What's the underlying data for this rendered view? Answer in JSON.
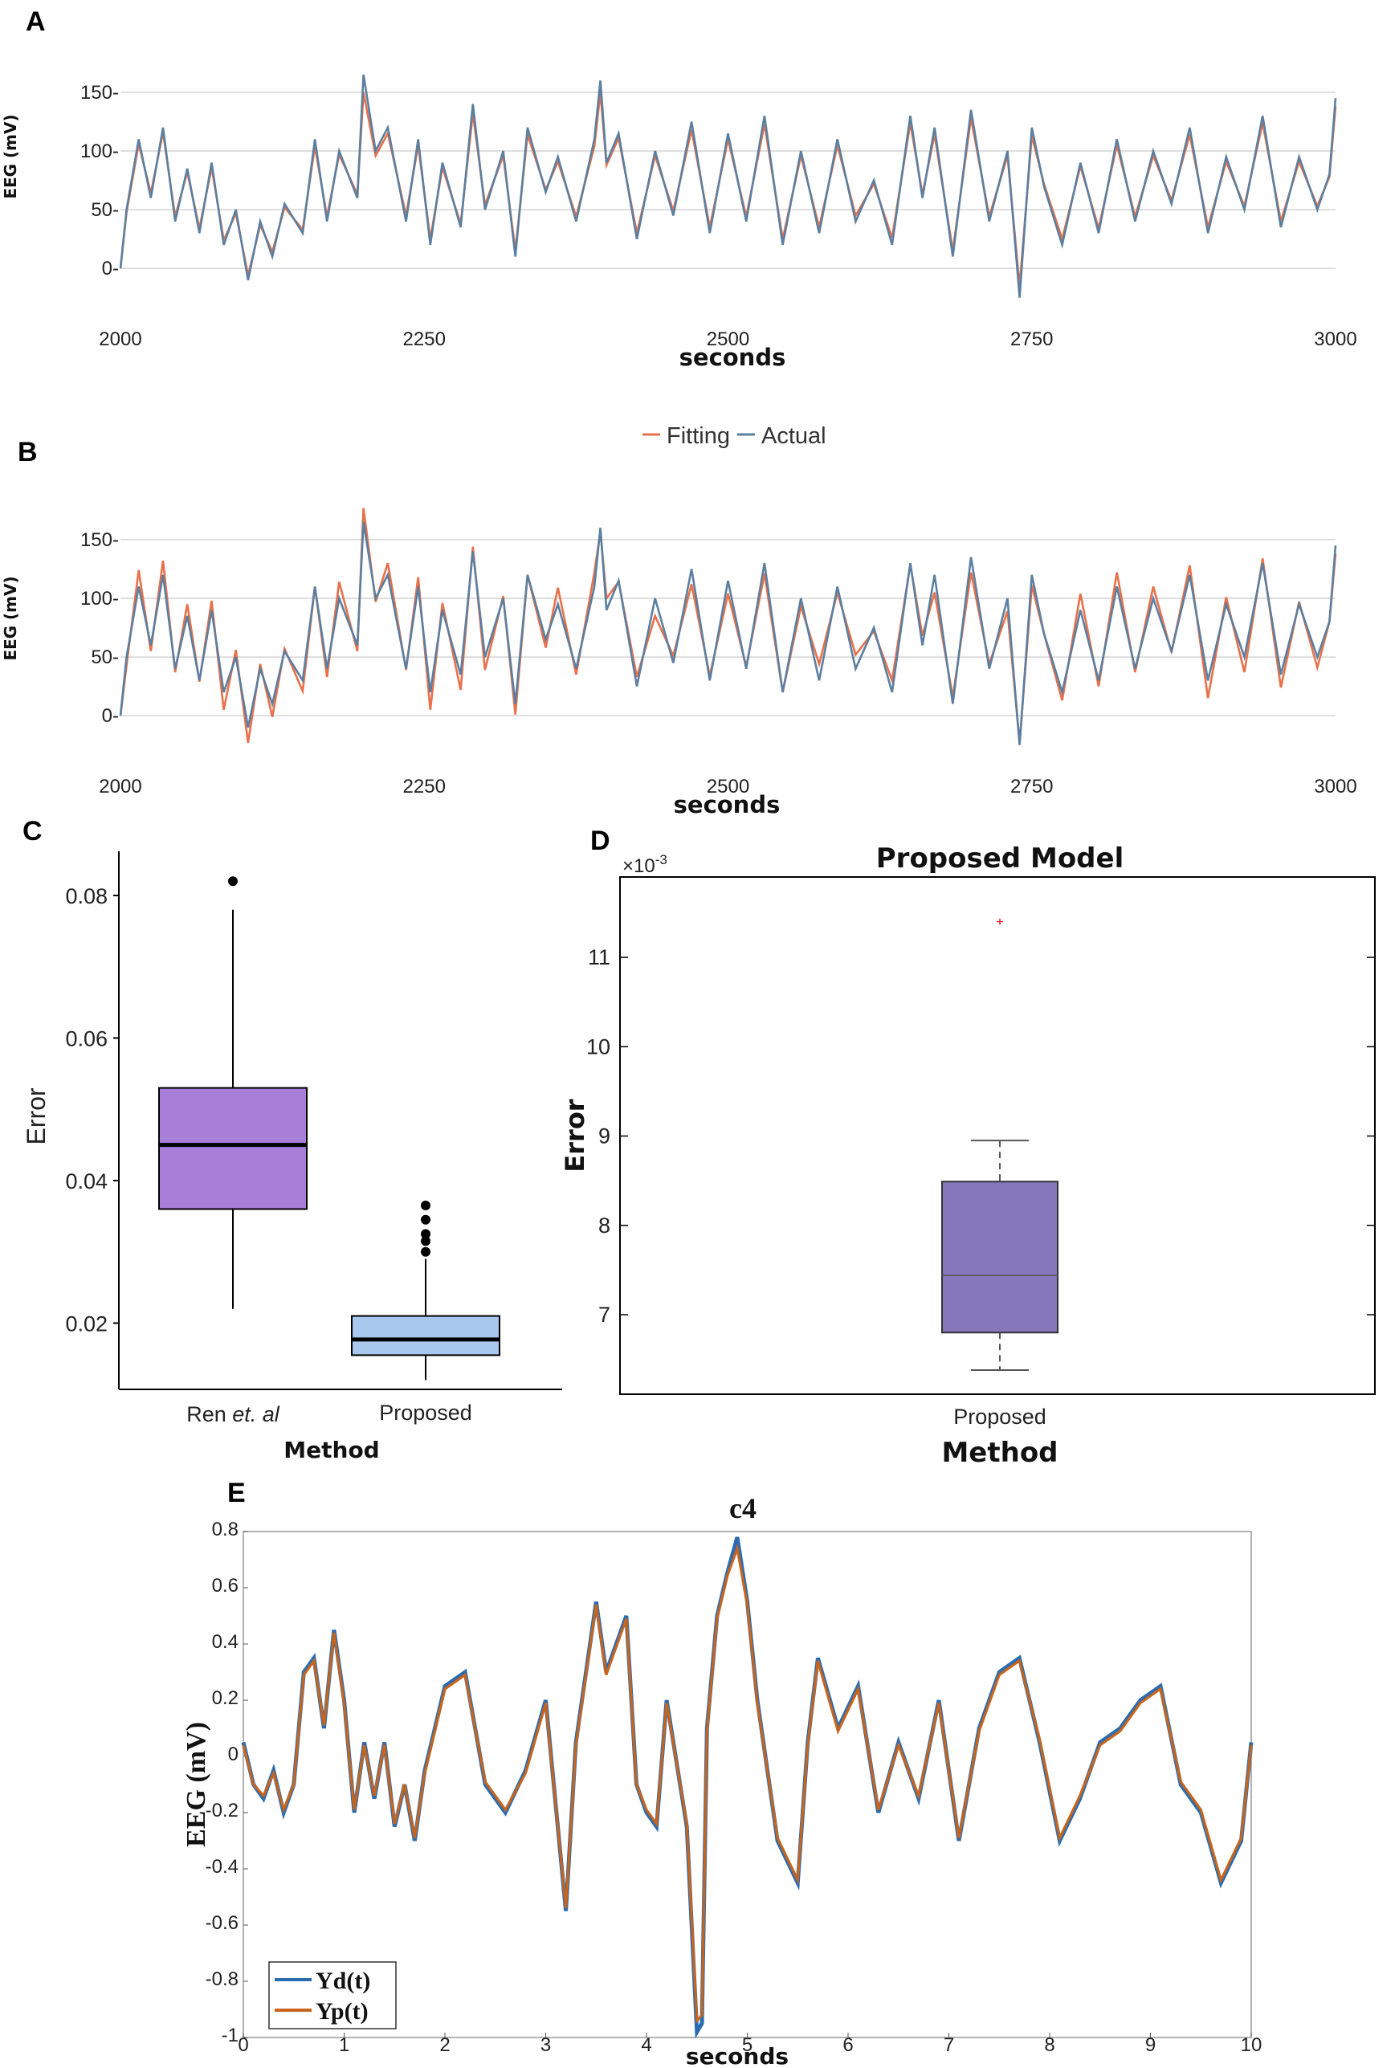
{
  "colors": {
    "fitting": "#e8704a",
    "actual": "#5b7fa0",
    "box_ren": "#a77ed8",
    "box_prop": "#a9c8ee",
    "box_d": "#8478bb",
    "yd": "#2b6cb0",
    "yp": "#c8651d"
  },
  "chart_data": [
    {
      "id": "A",
      "panel_label": "A",
      "type": "line",
      "xlabel": "seconds",
      "ylabel": "EEG (mV)",
      "xlim": [
        2000,
        3000
      ],
      "ylim": [
        -30,
        165
      ],
      "xticks": [
        "2000",
        "2250",
        "2500",
        "2750",
        "3000"
      ],
      "yticks": [
        "0-",
        "50-",
        "100-",
        "150-"
      ],
      "series": [
        {
          "name": "Fitting",
          "color": "#e8704a"
        },
        {
          "name": "Actual",
          "color": "#5b7fa0"
        }
      ],
      "x": [
        2000,
        2005,
        2015,
        2025,
        2035,
        2045,
        2055,
        2065,
        2075,
        2085,
        2095,
        2105,
        2115,
        2125,
        2135,
        2150,
        2160,
        2170,
        2180,
        2195,
        2200,
        2210,
        2220,
        2235,
        2245,
        2255,
        2265,
        2280,
        2290,
        2300,
        2315,
        2325,
        2335,
        2350,
        2360,
        2375,
        2390,
        2395,
        2400,
        2410,
        2425,
        2440,
        2455,
        2470,
        2485,
        2500,
        2515,
        2530,
        2545,
        2560,
        2575,
        2590,
        2605,
        2620,
        2635,
        2650,
        2660,
        2670,
        2685,
        2700,
        2715,
        2730,
        2740,
        2750,
        2760,
        2775,
        2790,
        2805,
        2820,
        2835,
        2850,
        2865,
        2880,
        2895,
        2910,
        2925,
        2940,
        2955,
        2970,
        2985,
        2995,
        3000
      ],
      "actual": [
        0,
        50,
        110,
        60,
        120,
        40,
        85,
        30,
        90,
        20,
        50,
        -10,
        40,
        10,
        55,
        30,
        110,
        40,
        100,
        60,
        165,
        100,
        120,
        40,
        110,
        20,
        90,
        35,
        140,
        50,
        100,
        10,
        120,
        65,
        95,
        40,
        110,
        160,
        90,
        115,
        25,
        100,
        45,
        125,
        30,
        115,
        40,
        130,
        20,
        100,
        30,
        110,
        40,
        75,
        20,
        130,
        60,
        120,
        10,
        135,
        40,
        100,
        -25,
        120,
        70,
        20,
        90,
        30,
        110,
        40,
        100,
        55,
        120,
        30,
        95,
        50,
        130,
        35,
        95,
        50,
        80,
        145
      ],
      "fitting": [
        0,
        48,
        106,
        64,
        116,
        44,
        82,
        34,
        86,
        24,
        47,
        -6,
        37,
        14,
        52,
        33,
        104,
        44,
        97,
        63,
        150,
        96,
        115,
        45,
        105,
        25,
        86,
        38,
        132,
        54,
        96,
        15,
        114,
        67,
        91,
        44,
        104,
        150,
        88,
        111,
        30,
        96,
        49,
        118,
        35,
        110,
        44,
        123,
        25,
        96,
        35,
        105,
        45,
        72,
        26,
        124,
        63,
        114,
        15,
        128,
        44,
        96,
        -15,
        113,
        72,
        25,
        87,
        34,
        105,
        44,
        96,
        58,
        114,
        35,
        91,
        53,
        124,
        40,
        91,
        53,
        78,
        138
      ]
    },
    {
      "id": "B",
      "panel_label": "B",
      "type": "line",
      "xlabel": "seconds",
      "ylabel": "EEG (mV)",
      "xlim": [
        2000,
        3000
      ],
      "ylim": [
        -30,
        165
      ],
      "xticks": [
        "2000",
        "2250",
        "2500",
        "2750",
        "3000"
      ],
      "yticks": [
        "0-",
        "50-",
        "100-",
        "150-"
      ],
      "series": [
        {
          "name": "Fitting",
          "color": "#e8704a"
        },
        {
          "name": "Actual",
          "color": "#5b7fa0"
        }
      ]
    },
    {
      "id": "C",
      "panel_label": "C",
      "type": "box",
      "xlabel": "Method",
      "ylabel": "Error",
      "yticks": [
        "0.02",
        "0.04",
        "0.06",
        "0.08"
      ],
      "categories": [
        "Ren et. al",
        "Proposed"
      ],
      "boxes": [
        {
          "name": "Ren",
          "name_suffix": "et. al",
          "q1": 0.036,
          "median": 0.045,
          "q3": 0.053,
          "whisker_low": 0.022,
          "whisker_high": 0.078,
          "outliers": [
            0.082
          ]
        },
        {
          "name": "Proposed",
          "q1": 0.0155,
          "median": 0.0177,
          "q3": 0.021,
          "whisker_low": 0.012,
          "whisker_high": 0.029,
          "outliers": [
            0.03,
            0.0315,
            0.0325,
            0.0345,
            0.0365
          ]
        }
      ]
    },
    {
      "id": "D",
      "panel_label": "D",
      "type": "box",
      "title": "Proposed Model",
      "xlabel": "Method",
      "ylabel": "Error",
      "exponent_label": "×10",
      "exponent": "-3",
      "yticks": [
        "7",
        "8",
        "9",
        "10",
        "11"
      ],
      "categories": [
        "Proposed"
      ],
      "boxes": [
        {
          "name": "Proposed",
          "q1": 6.8,
          "median": 7.44,
          "q3": 8.49,
          "whisker_low": 6.38,
          "whisker_high": 8.95,
          "outliers": [
            11.4
          ]
        }
      ]
    },
    {
      "id": "E",
      "panel_label": "E",
      "type": "line",
      "title": "c4",
      "xlabel": "seconds",
      "ylabel": "EEG (mV)",
      "xlim": [
        0,
        10
      ],
      "ylim": [
        -1,
        0.8
      ],
      "xticks": [
        "0",
        "1",
        "2",
        "3",
        "4",
        "5",
        "6",
        "7",
        "8",
        "9",
        "10"
      ],
      "yticks": [
        "-1",
        "-0.8",
        "-0.6",
        "-0.4",
        "-0.2",
        "0",
        "0.2",
        "0.4",
        "0.6",
        "0.8"
      ],
      "series": [
        {
          "name": "Yd(t)",
          "color": "#2b6cb0"
        },
        {
          "name": "Yp(t)",
          "color": "#c8651d"
        }
      ],
      "x": [
        0,
        0.1,
        0.2,
        0.3,
        0.4,
        0.5,
        0.6,
        0.7,
        0.8,
        0.9,
        1.0,
        1.1,
        1.2,
        1.3,
        1.4,
        1.5,
        1.6,
        1.7,
        1.8,
        1.9,
        2.0,
        2.2,
        2.4,
        2.6,
        2.8,
        3.0,
        3.2,
        3.3,
        3.4,
        3.5,
        3.6,
        3.8,
        3.9,
        4.0,
        4.1,
        4.2,
        4.4,
        4.5,
        4.55,
        4.6,
        4.7,
        4.8,
        4.9,
        5.0,
        5.1,
        5.3,
        5.5,
        5.6,
        5.7,
        5.9,
        6.1,
        6.3,
        6.5,
        6.7,
        6.9,
        7.1,
        7.3,
        7.5,
        7.7,
        7.9,
        8.1,
        8.3,
        8.5,
        8.7,
        8.9,
        9.1,
        9.3,
        9.5,
        9.7,
        9.9,
        10.0
      ],
      "yd": [
        0.05,
        -0.1,
        -0.15,
        -0.05,
        -0.2,
        -0.1,
        0.3,
        0.35,
        0.1,
        0.45,
        0.2,
        -0.2,
        0.05,
        -0.15,
        0.05,
        -0.25,
        -0.1,
        -0.3,
        -0.05,
        0.1,
        0.25,
        0.3,
        -0.1,
        -0.2,
        -0.05,
        0.2,
        -0.55,
        0.05,
        0.3,
        0.55,
        0.3,
        0.5,
        -0.1,
        -0.2,
        -0.25,
        0.2,
        -0.25,
        -0.98,
        -0.95,
        0.1,
        0.5,
        0.65,
        0.78,
        0.55,
        0.2,
        -0.3,
        -0.45,
        0.05,
        0.35,
        0.1,
        0.25,
        -0.2,
        0.05,
        -0.15,
        0.2,
        -0.3,
        0.1,
        0.3,
        0.35,
        0.05,
        -0.3,
        -0.15,
        0.05,
        0.1,
        0.2,
        0.25,
        -0.1,
        -0.2,
        -0.45,
        -0.3,
        0.05
      ],
      "yp": [
        0.04,
        -0.1,
        -0.14,
        -0.06,
        -0.19,
        -0.1,
        0.29,
        0.34,
        0.11,
        0.44,
        0.19,
        -0.19,
        0.04,
        -0.14,
        0.04,
        -0.24,
        -0.1,
        -0.29,
        -0.06,
        0.09,
        0.24,
        0.29,
        -0.09,
        -0.19,
        -0.06,
        0.19,
        -0.54,
        0.04,
        0.29,
        0.54,
        0.29,
        0.49,
        -0.1,
        -0.19,
        -0.24,
        0.19,
        -0.24,
        -0.94,
        -0.92,
        0.09,
        0.49,
        0.64,
        0.74,
        0.54,
        0.19,
        -0.29,
        -0.44,
        0.04,
        0.34,
        0.09,
        0.24,
        -0.19,
        0.04,
        -0.14,
        0.19,
        -0.29,
        0.09,
        0.29,
        0.34,
        0.06,
        -0.29,
        -0.14,
        0.04,
        0.09,
        0.19,
        0.24,
        -0.09,
        -0.19,
        -0.44,
        -0.29,
        0.04
      ]
    }
  ]
}
